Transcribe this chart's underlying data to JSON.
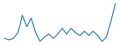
{
  "values": [
    5,
    4.5,
    5,
    7,
    13,
    9,
    12,
    7,
    4,
    5.5,
    6.5,
    5,
    6.5,
    8.5,
    6.5,
    8.5,
    7,
    6,
    7.5,
    6,
    7.5,
    6,
    4,
    5.5,
    11,
    17
  ],
  "line_color": "#3a86c8",
  "background_color": "#ffffff",
  "linewidth": 0.8
}
